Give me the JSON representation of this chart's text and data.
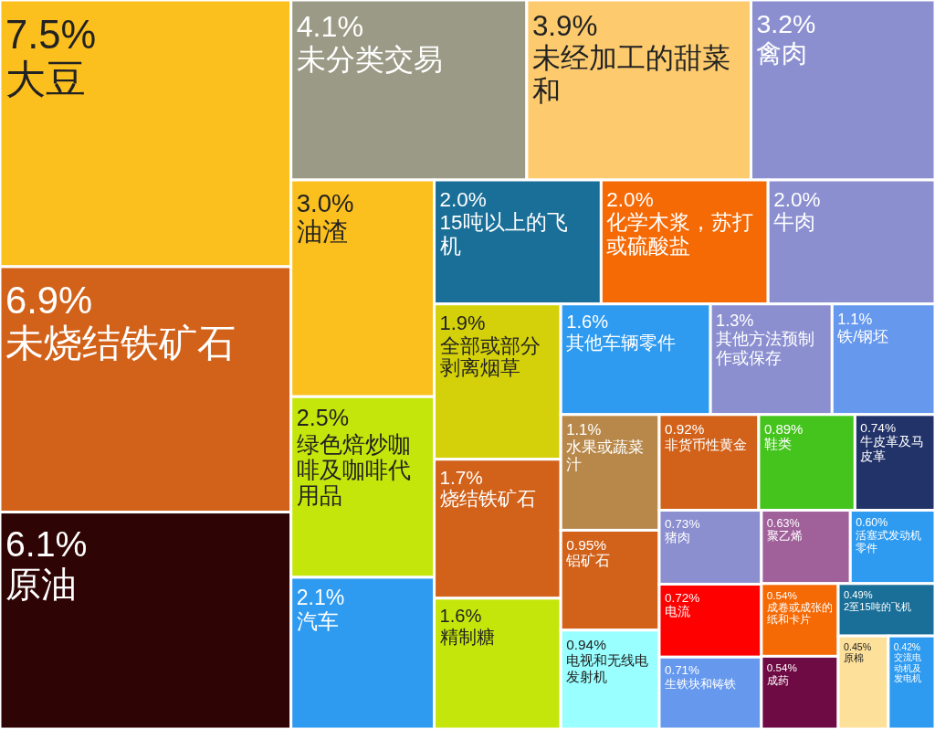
{
  "chart_data": {
    "type": "other",
    "data_labels": true,
    "categories": [
      "大豆",
      "未烧结铁矿石",
      "原油",
      "未分类交易",
      "未经加工的甜菜和",
      "禽肉",
      "油渣",
      "绿色焙炒咖啡及咖啡代用品",
      "汽车",
      "15吨以上的飞机",
      "化学木浆，苏打或硫酸盐",
      "牛肉",
      "全部或部分剥离烟草",
      "烧结铁矿石",
      "精制糖",
      "其他车辆零件",
      "其他方法预制作或保存",
      "铁/钢坯",
      "水果或蔬菜汁",
      "铝矿石",
      "电视和无线电发射机",
      "非货币性黄金",
      "鞋类",
      "牛皮革及马皮革",
      "猪肉",
      "电流",
      "生铁块和铸铁",
      "聚乙烯",
      "活塞式发动机零件",
      "成卷或成张的纸和卡片",
      "成药",
      "2至15吨的飞机",
      "原棉",
      "交流电动机及发电机"
    ],
    "values": [
      7.5,
      6.9,
      6.1,
      4.1,
      3.9,
      3.2,
      3.0,
      2.5,
      2.1,
      2.0,
      2.0,
      2.0,
      1.9,
      1.7,
      1.6,
      1.6,
      1.3,
      1.1,
      1.1,
      0.95,
      0.94,
      0.92,
      0.89,
      0.74,
      0.73,
      0.72,
      0.71,
      0.63,
      0.6,
      0.54,
      0.54,
      0.49,
      0.45,
      0.42
    ],
    "value_labels": [
      "7.5%",
      "6.9%",
      "6.1%",
      "4.1%",
      "3.9%",
      "3.2%",
      "3.0%",
      "2.5%",
      "2.1%",
      "2.0%",
      "2.0%",
      "2.0%",
      "1.9%",
      "1.7%",
      "1.6%",
      "1.6%",
      "1.3%",
      "1.1%",
      "1.1%",
      "0.95%",
      "0.94%",
      "0.92%",
      "0.89%",
      "0.74%",
      "0.73%",
      "0.72%",
      "0.71%",
      "0.63%",
      "0.60%",
      "0.54%",
      "0.54%",
      "0.49%",
      "0.45%",
      "0.42%"
    ],
    "colors": [
      "#fbbf1e",
      "#d2621a",
      "#2e0404",
      "#9a9a86",
      "#fdcb6e",
      "#8b8fd0",
      "#fbbf1e",
      "#c5e60a",
      "#2e9bf0",
      "#1a6f98",
      "#f56a05",
      "#8b8fd0",
      "#d4d10a",
      "#d2621a",
      "#c5e60a",
      "#2e9bf0",
      "#8b8fd0",
      "#6699ee",
      "#b8884a",
      "#d2621a",
      "#99ffff",
      "#d2621a",
      "#44c41c",
      "#22336a",
      "#8b8fd0",
      "#ff0000",
      "#6699ee",
      "#a0609a",
      "#2e9bf0",
      "#f56a05",
      "#6e0a44",
      "#1a6f98",
      "#fde09a",
      "#2e9bf0"
    ]
  }
}
